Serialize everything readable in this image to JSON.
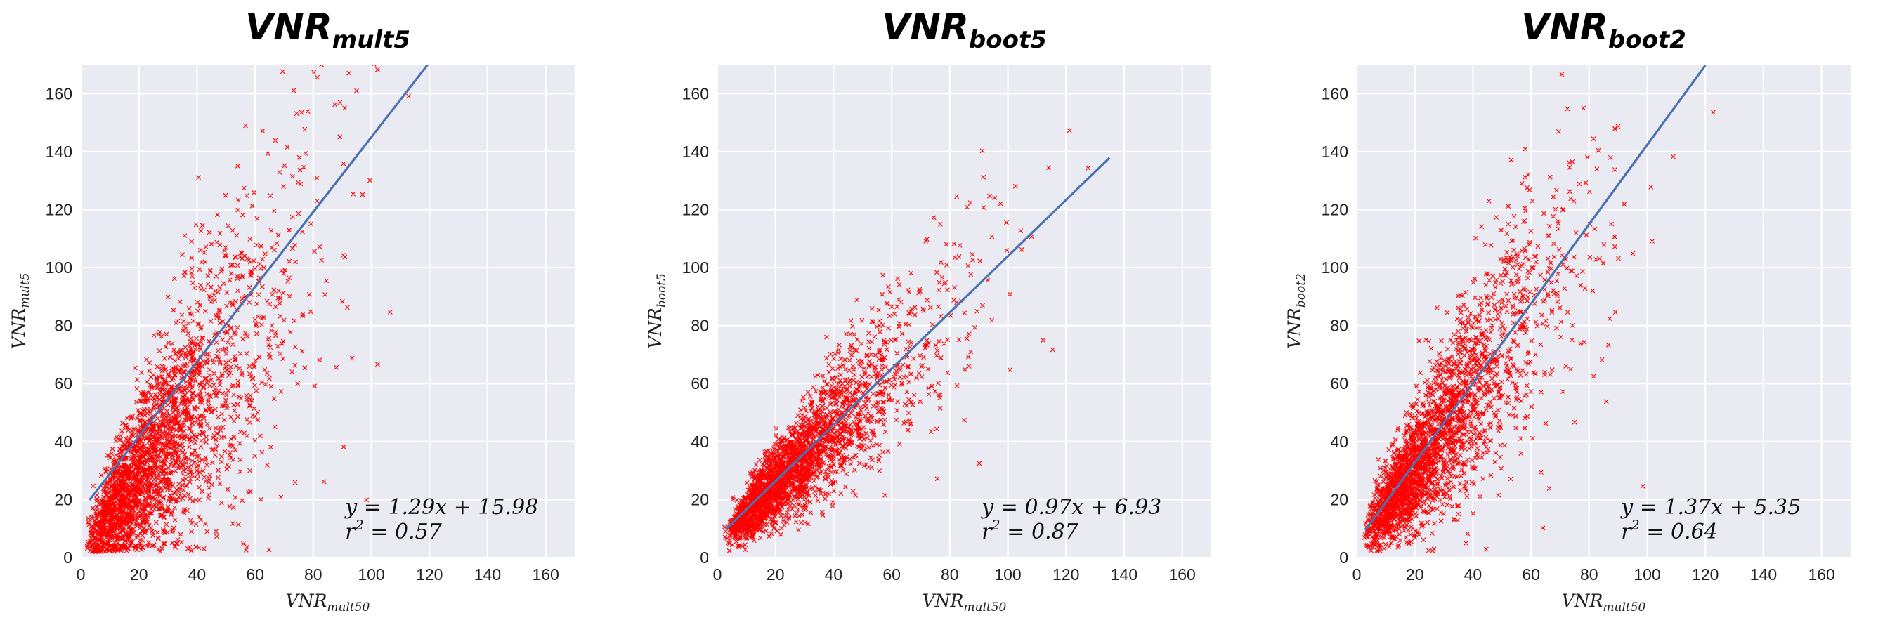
{
  "chart_data": [
    {
      "type": "scatter",
      "title": {
        "main": "VNR",
        "sub": "mult5"
      },
      "xlabel": {
        "main": "VNR",
        "sub": "mult50"
      },
      "ylabel": {
        "main": "VNR",
        "sub": "mult5"
      },
      "xlim": [
        0,
        170
      ],
      "ylim": [
        0,
        170
      ],
      "xticks": [
        0,
        20,
        40,
        60,
        80,
        100,
        120,
        140,
        160
      ],
      "yticks": [
        0,
        20,
        40,
        60,
        80,
        100,
        120,
        140,
        160
      ],
      "grid": true,
      "background": "#eaeaf2",
      "marker_color": "#ff0000",
      "line_color": "#4c72b0",
      "fit": {
        "slope": 1.29,
        "intercept": 15.98,
        "x_range": [
          3,
          120
        ]
      },
      "annotation": {
        "eq": "y = 1.29x + 15.98",
        "r2_lhs": "r",
        "r2_exp": "2",
        "r2_rhs": " = 0.57"
      },
      "scatter_model": {
        "n": 2600,
        "x_shape": 2.2,
        "x_scale": 18,
        "x_max": 135,
        "slope": 1.29,
        "intercept": 2,
        "noise_base": 4,
        "noise_frac": 0.45,
        "seed": 11
      }
    },
    {
      "type": "scatter",
      "title": {
        "main": "VNR",
        "sub": "boot5"
      },
      "xlabel": {
        "main": "VNR",
        "sub": "mult50"
      },
      "ylabel": {
        "main": "VNR",
        "sub": "boot5"
      },
      "xlim": [
        0,
        170
      ],
      "ylim": [
        0,
        170
      ],
      "xticks": [
        0,
        20,
        40,
        60,
        80,
        100,
        120,
        140,
        160
      ],
      "yticks": [
        0,
        20,
        40,
        60,
        80,
        100,
        120,
        140,
        160
      ],
      "grid": true,
      "background": "#eaeaf2",
      "marker_color": "#ff0000",
      "line_color": "#4c72b0",
      "fit": {
        "slope": 0.97,
        "intercept": 6.93,
        "x_range": [
          3,
          135
        ]
      },
      "annotation": {
        "eq": "y = 0.97x + 6.93",
        "r2_lhs": "r",
        "r2_exp": "2",
        "r2_rhs": " = 0.87"
      },
      "scatter_model": {
        "n": 2600,
        "x_shape": 2.2,
        "x_scale": 18,
        "x_max": 135,
        "slope": 1.0,
        "intercept": 5,
        "noise_base": 2,
        "noise_frac": 0.22,
        "seed": 23
      }
    },
    {
      "type": "scatter",
      "title": {
        "main": "VNR",
        "sub": "boot2"
      },
      "xlabel": {
        "main": "VNR",
        "sub": "mult50"
      },
      "ylabel": {
        "main": "VNR",
        "sub": "boot2"
      },
      "xlim": [
        0,
        170
      ],
      "ylim": [
        0,
        170
      ],
      "xticks": [
        0,
        20,
        40,
        60,
        80,
        100,
        120,
        140,
        160
      ],
      "yticks": [
        0,
        20,
        40,
        60,
        80,
        100,
        120,
        140,
        160
      ],
      "grid": true,
      "background": "#eaeaf2",
      "marker_color": "#ff0000",
      "line_color": "#4c72b0",
      "fit": {
        "slope": 1.37,
        "intercept": 5.35,
        "x_range": [
          3,
          120
        ]
      },
      "annotation": {
        "eq": "y = 1.37x + 5.35",
        "r2_lhs": "r",
        "r2_exp": "2",
        "r2_rhs": " = 0.64"
      },
      "scatter_model": {
        "n": 2600,
        "x_shape": 2.2,
        "x_scale": 18,
        "x_max": 135,
        "slope": 1.35,
        "intercept": 4,
        "noise_base": 3,
        "noise_frac": 0.38,
        "seed": 37
      }
    }
  ]
}
